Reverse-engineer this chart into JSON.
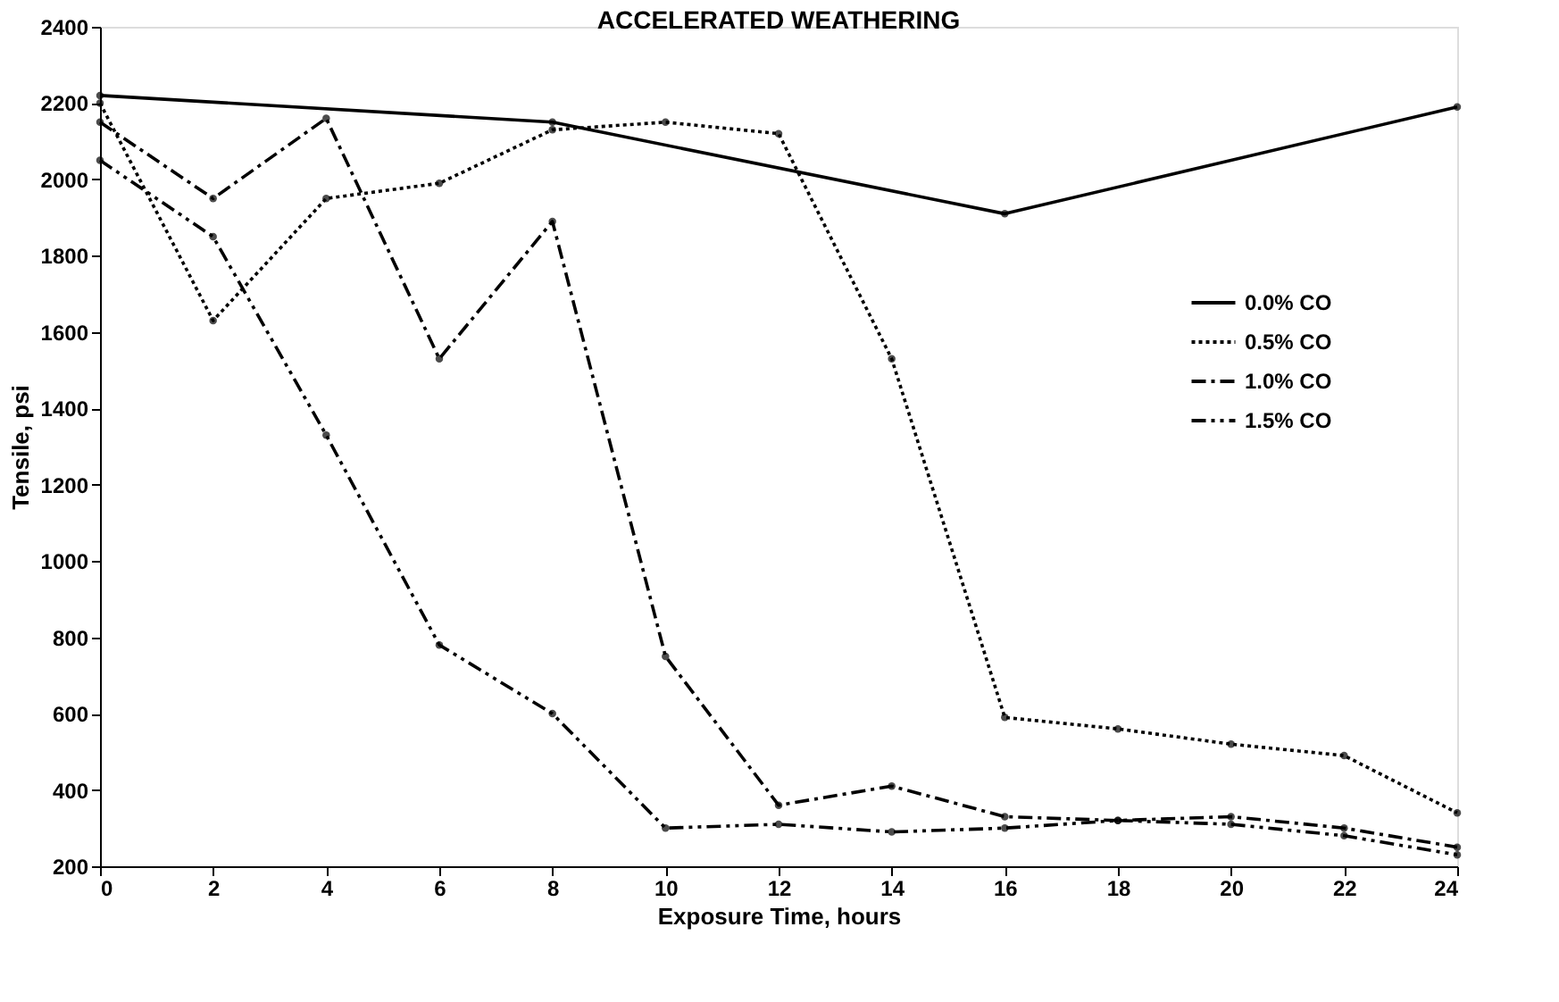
{
  "chart_data": {
    "type": "line",
    "title": "ACCELERATED WEATHERING",
    "xlabel": "Exposure Time, hours",
    "ylabel": "Tensile, psi",
    "x": [
      0,
      2,
      4,
      6,
      8,
      10,
      12,
      14,
      16,
      18,
      20,
      22,
      24
    ],
    "series": [
      {
        "name": "0.0% CO",
        "color": "#000000",
        "line_style": "solid",
        "x": [
          0,
          8,
          16,
          24
        ],
        "values": [
          2220,
          2150,
          1910,
          2190
        ]
      },
      {
        "name": "0.5% CO",
        "color": "#000000",
        "line_style": "dotted",
        "values": [
          2200,
          1630,
          1950,
          1990,
          2130,
          2150,
          2120,
          1530,
          590,
          560,
          520,
          490,
          340
        ]
      },
      {
        "name": "1.0% CO",
        "color": "#000000",
        "line_style": "dashdot",
        "values": [
          2150,
          1950,
          2160,
          1530,
          1890,
          750,
          360,
          410,
          330,
          320,
          330,
          300,
          250
        ]
      },
      {
        "name": "1.5% CO",
        "color": "#000000",
        "line_style": "dashdotdot",
        "values": [
          2050,
          1850,
          1330,
          780,
          600,
          300,
          310,
          290,
          300,
          320,
          310,
          280,
          230
        ]
      }
    ],
    "xlim": [
      0,
      24
    ],
    "xticks": [
      0,
      2,
      4,
      6,
      8,
      10,
      12,
      14,
      16,
      18,
      20,
      22,
      24
    ],
    "ylim": [
      200,
      2400
    ],
    "yticks": [
      200,
      400,
      600,
      800,
      1000,
      1200,
      1400,
      1600,
      1800,
      2000,
      2200,
      2400
    ],
    "grid": false,
    "legend": "right",
    "marker": "circle"
  }
}
